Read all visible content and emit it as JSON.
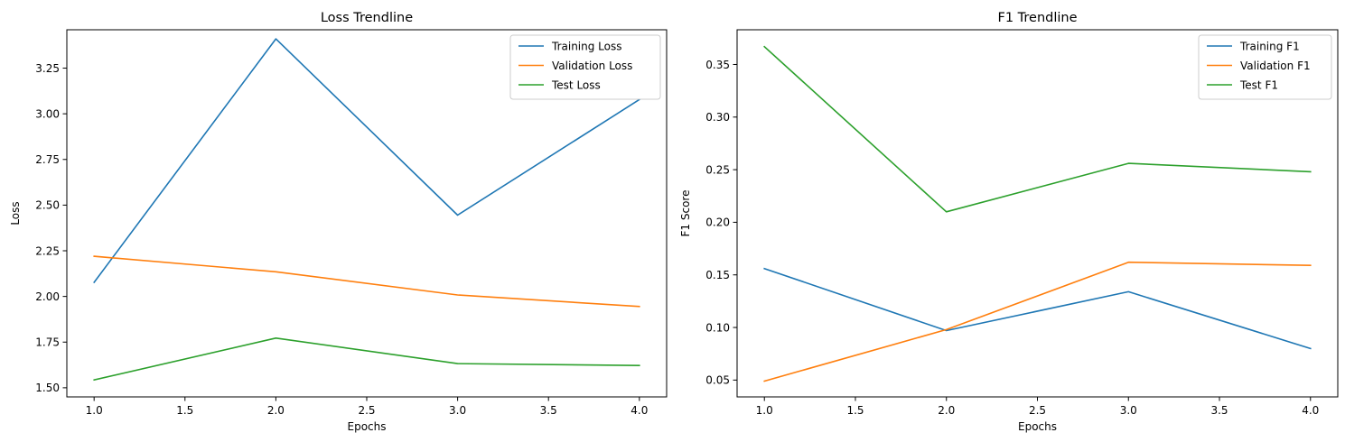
{
  "chart_data": [
    {
      "type": "line",
      "title": "Loss Trendline",
      "xlabel": "Epochs",
      "ylabel": "Loss",
      "xlim": [
        0.85,
        4.15
      ],
      "ylim": [
        1.45,
        3.46
      ],
      "xticks": [
        1.0,
        1.5,
        2.0,
        2.5,
        3.0,
        3.5,
        4.0
      ],
      "xtick_labels": [
        "1.0",
        "1.5",
        "2.0",
        "2.5",
        "3.0",
        "3.5",
        "4.0"
      ],
      "yticks": [
        1.5,
        1.75,
        2.0,
        2.25,
        2.5,
        2.75,
        3.0,
        3.25
      ],
      "ytick_labels": [
        "1.50",
        "1.75",
        "2.00",
        "2.25",
        "2.50",
        "2.75",
        "3.00",
        "3.25"
      ],
      "grid": false,
      "legend_position": "top-right",
      "x": [
        1,
        2,
        3,
        4
      ],
      "series": [
        {
          "name": "Training Loss",
          "color": "#1f77b4",
          "values": [
            2.077,
            3.41,
            2.445,
            3.078
          ]
        },
        {
          "name": "Validation Loss",
          "color": "#ff7f0e",
          "values": [
            2.22,
            2.135,
            2.008,
            1.945
          ]
        },
        {
          "name": "Test Loss",
          "color": "#2ca02c",
          "values": [
            1.543,
            1.772,
            1.632,
            1.622
          ]
        }
      ]
    },
    {
      "type": "line",
      "title": "F1 Trendline",
      "xlabel": "Epochs",
      "ylabel": "F1 Score",
      "xlim": [
        0.85,
        4.15
      ],
      "ylim": [
        0.034,
        0.383
      ],
      "xticks": [
        1.0,
        1.5,
        2.0,
        2.5,
        3.0,
        3.5,
        4.0
      ],
      "xtick_labels": [
        "1.0",
        "1.5",
        "2.0",
        "2.5",
        "3.0",
        "3.5",
        "4.0"
      ],
      "yticks": [
        0.05,
        0.1,
        0.15,
        0.2,
        0.25,
        0.3,
        0.35
      ],
      "ytick_labels": [
        "0.05",
        "0.10",
        "0.15",
        "0.20",
        "0.25",
        "0.30",
        "0.35"
      ],
      "grid": false,
      "legend_position": "top-right",
      "x": [
        1,
        2,
        3,
        4
      ],
      "series": [
        {
          "name": "Training F1",
          "color": "#1f77b4",
          "values": [
            0.156,
            0.097,
            0.134,
            0.08
          ]
        },
        {
          "name": "Validation F1",
          "color": "#ff7f0e",
          "values": [
            0.049,
            0.098,
            0.162,
            0.159
          ]
        },
        {
          "name": "Test F1",
          "color": "#2ca02c",
          "values": [
            0.367,
            0.21,
            0.256,
            0.248
          ]
        }
      ]
    }
  ]
}
